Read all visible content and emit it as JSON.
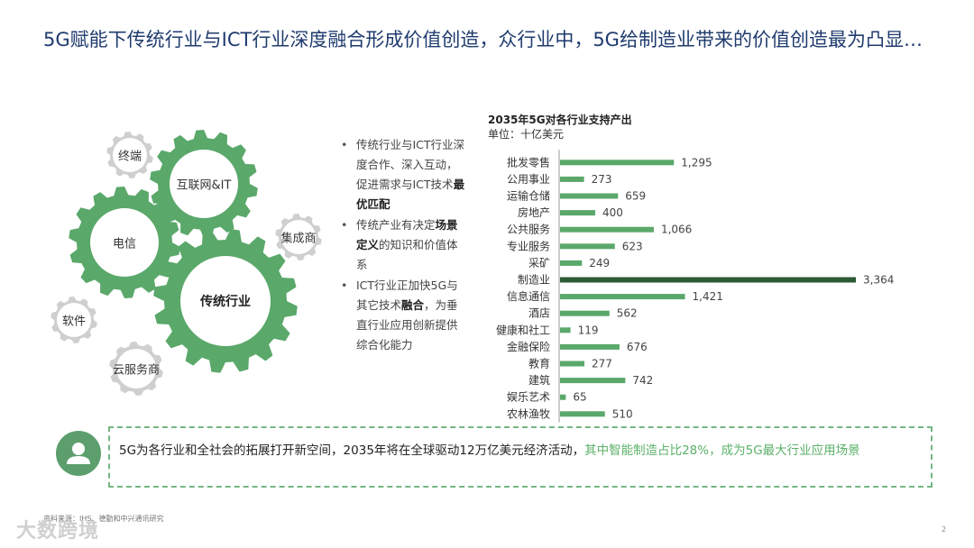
{
  "title": "5G赋能下传统行业与ICT行业深度融合形成价值创造，众行业中，5G给制造业带来的价值创造最为凸显…",
  "gears": {
    "terminal": "终端",
    "internet_it": "互联网&IT",
    "telecom": "电信",
    "integrator": "集成商",
    "traditional": "传统行业",
    "software": "软件",
    "cloud": "云服务商"
  },
  "bullets": [
    {
      "pre": "传统行业与ICT行业深度合作、深入互动，促进需求与ICT技术",
      "bold": "最优匹配",
      "post": ""
    },
    {
      "pre": "传统产业有决定",
      "bold": "场景定义",
      "post": "的知识和价值体系"
    },
    {
      "pre": "ICT行业正加快5G与其它技术",
      "bold": "融合",
      "post": "，为垂直行业应用创新提供综合化能力"
    }
  ],
  "chart_data": {
    "type": "bar",
    "orientation": "horizontal",
    "title": "2035年5G对各行业支持产出",
    "unit": "单位：十亿美元",
    "categories": [
      "批发零售",
      "公用事业",
      "运输仓储",
      "房地产",
      "公共服务",
      "专业服务",
      "采矿",
      "制造业",
      "信息通信",
      "酒店",
      "健康和社工",
      "金融保险",
      "教育",
      "建筑",
      "娱乐艺术",
      "农林渔牧"
    ],
    "values": [
      1295,
      273,
      659,
      400,
      1066,
      623,
      249,
      3364,
      1421,
      562,
      119,
      676,
      277,
      742,
      65,
      510
    ],
    "value_labels": [
      "1,295",
      "273",
      "659",
      "400",
      "1,066",
      "623",
      "249",
      "3,364",
      "1,421",
      "562",
      "119",
      "676",
      "277",
      "742",
      "65",
      "510"
    ],
    "highlight": "制造业",
    "bar_color": "#5aa86a",
    "highlight_color": "#2d5a36",
    "xlim": [
      0,
      3364
    ]
  },
  "callout": {
    "text_main": "5G为各行业和全社会的拓展打开新空间，2035年将在全球驱动12万亿美元经济活动，",
    "text_highlight": "其中智能制造占比28%，成为5G最大行业应用场景"
  },
  "source": "资料来源：IHS、德勤和中兴通讯研究",
  "watermark": "大数跨境",
  "page_number": "2"
}
